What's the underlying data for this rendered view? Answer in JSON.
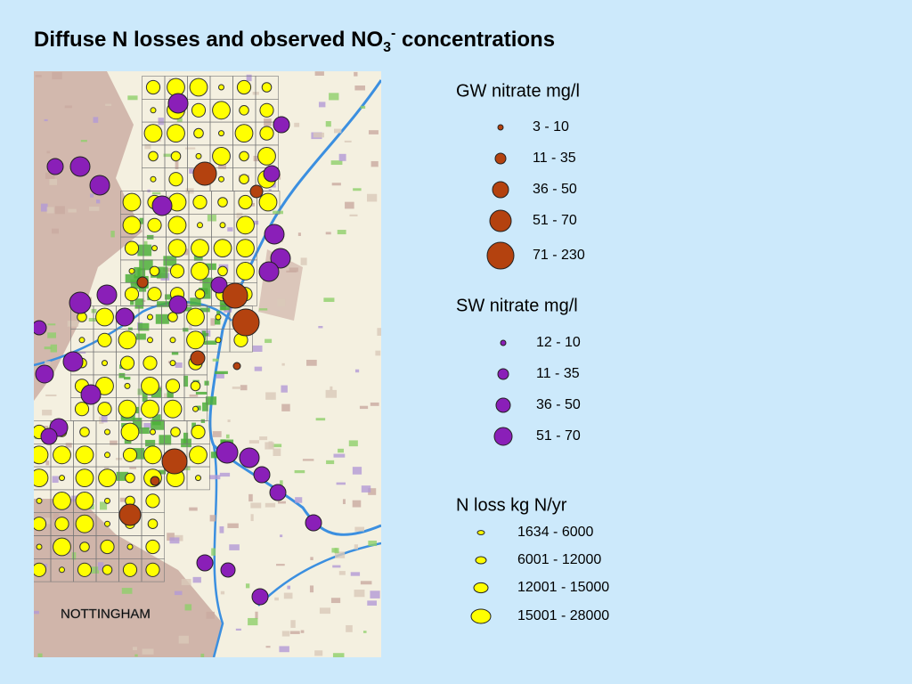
{
  "title": {
    "text": "Diffuse N losses and observed NO",
    "subscript": "3",
    "superscript": "-",
    "suffix": " concentrations"
  },
  "map": {
    "label": "NOTTINGHAM"
  },
  "legends": [
    {
      "title": "GW nitrate mg/l",
      "items": [
        "3 - 10",
        "11 - 35",
        "36 - 50",
        "51 - 70",
        "71 - 230"
      ]
    },
    {
      "title": "SW nitrate mg/l",
      "items": [
        "12 - 10",
        "11 - 35",
        "36 - 50",
        "51 - 70"
      ]
    },
    {
      "title": "N loss kg N/yr",
      "items": [
        "1634 - 6000",
        "6001 - 12000",
        "12001 - 15000",
        "15001 - 28000"
      ]
    }
  ]
}
